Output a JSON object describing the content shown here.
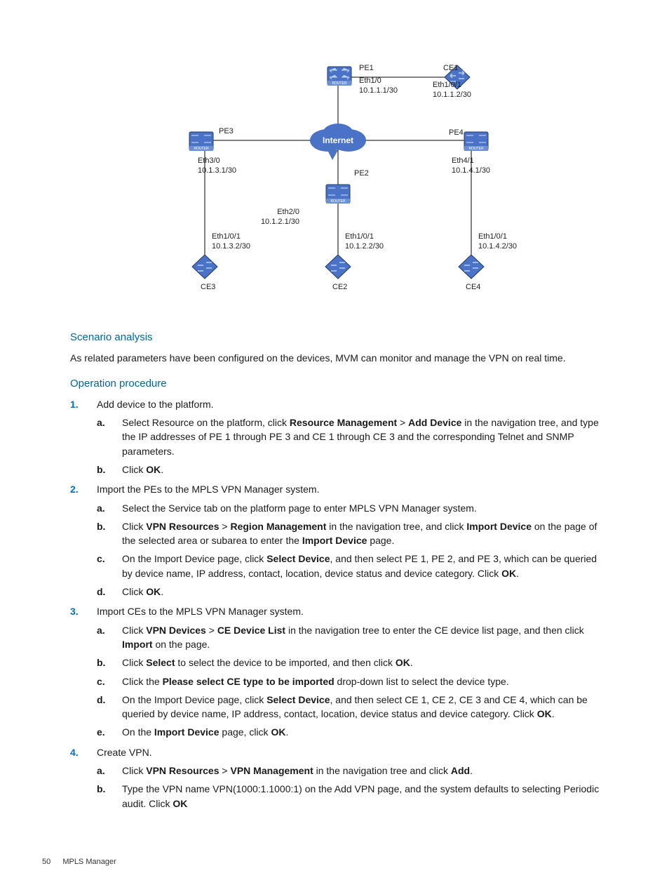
{
  "diagram": {
    "colors": {
      "node_fill": "#4a72c7",
      "node_stroke": "#233a6b",
      "link": "#000000",
      "label": "#222222",
      "cloud_text": "#ffffff"
    },
    "internet_label": "Internet",
    "label_fontsize": 11,
    "nodes": {
      "PE1": {
        "label": "PE1",
        "if": "Eth1/0",
        "ip": "10.1.1.1/30"
      },
      "CE1": {
        "label": "CE1",
        "if": "Eth1/0/1",
        "ip": "10.1.1.2/30"
      },
      "PE3": {
        "label": "PE3",
        "if": "Eth3/0",
        "ip": "10.1.3.1/30"
      },
      "PE4": {
        "label": "PE4",
        "if": "Eth4/1",
        "ip": "10.1.4.1/30"
      },
      "PE2": {
        "label": "PE2",
        "if": "Eth2/0",
        "ip": "10.1.2.1/30"
      },
      "CE2": {
        "label": "CE2",
        "if": "Eth1/0/1",
        "ip": "10.1.2.2/30"
      },
      "CE3": {
        "label": "CE3",
        "if": "Eth1/0/1",
        "ip": "10.1.3.2/30"
      },
      "CE4": {
        "label": "CE4",
        "if": "Eth1/0/1",
        "ip": "10.1.4.2/30"
      }
    }
  },
  "scenario": {
    "heading": "Scenario analysis",
    "text": "As related parameters have been configured on the devices, MVM can monitor and manage the VPN on real time."
  },
  "procedure": {
    "heading": "Operation procedure",
    "steps": [
      {
        "n": "1.",
        "text": "Add device to the platform.",
        "sub": [
          {
            "l": "a.",
            "parts": [
              "Select Resource on the platform, click ",
              {
                "b": "Resource Management"
              },
              " > ",
              {
                "b": "Add Device"
              },
              " in the navigation tree, and type the IP addresses of PE 1 through PE 3 and CE 1 through CE 3 and the corresponding Telnet and SNMP parameters."
            ]
          },
          {
            "l": "b.",
            "parts": [
              "Click ",
              {
                "b": "OK"
              },
              "."
            ]
          }
        ]
      },
      {
        "n": "2.",
        "text": "Import the PEs to the MPLS VPN Manager system.",
        "sub": [
          {
            "l": "a.",
            "parts": [
              "Select the Service tab on the platform page to enter MPLS VPN Manager system."
            ]
          },
          {
            "l": "b.",
            "parts": [
              "Click ",
              {
                "b": "VPN Resources"
              },
              " > ",
              {
                "b": "Region Management"
              },
              " in the navigation tree, and click ",
              {
                "b": "Import Device"
              },
              " on the page of the selected area or subarea to enter the ",
              {
                "b": "Import Device"
              },
              " page."
            ]
          },
          {
            "l": "c.",
            "parts": [
              "On the Import Device page, click ",
              {
                "b": "Select Device"
              },
              ", and then select PE 1, PE 2, and PE 3, which can be queried by device name, IP address, contact, location, device status and device category. Click ",
              {
                "b": "OK"
              },
              "."
            ]
          },
          {
            "l": "d.",
            "parts": [
              "Click ",
              {
                "b": "OK"
              },
              "."
            ]
          }
        ]
      },
      {
        "n": "3.",
        "text": "Import CEs to the MPLS VPN Manager system.",
        "sub": [
          {
            "l": "a.",
            "parts": [
              "Click ",
              {
                "b": "VPN Devices"
              },
              " > ",
              {
                "b": "CE Device List"
              },
              " in the navigation tree to enter the CE device list page, and then click ",
              {
                "b": "Import"
              },
              " on the page."
            ]
          },
          {
            "l": "b.",
            "parts": [
              "Click ",
              {
                "b": "Select"
              },
              " to select the device to be imported, and then click ",
              {
                "b": "OK"
              },
              "."
            ]
          },
          {
            "l": "c.",
            "parts": [
              "Click the ",
              {
                "b": "Please select CE type to be imported"
              },
              " drop-down list to select the device type."
            ]
          },
          {
            "l": "d.",
            "parts": [
              "On the Import Device page, click ",
              {
                "b": "Select Device"
              },
              ", and then select CE 1, CE 2, CE 3 and CE 4, which can be queried by device name, IP address, contact, location, device status and device category. Click ",
              {
                "b": "OK"
              },
              "."
            ]
          },
          {
            "l": "e.",
            "parts": [
              "On the ",
              {
                "b": "Import Device"
              },
              " page, click ",
              {
                "b": "OK"
              },
              "."
            ]
          }
        ]
      },
      {
        "n": "4.",
        "text": "Create VPN.",
        "sub": [
          {
            "l": "a.",
            "parts": [
              "Click ",
              {
                "b": "VPN Resources"
              },
              " > ",
              {
                "b": "VPN Management"
              },
              " in the navigation tree and click ",
              {
                "b": "Add"
              },
              "."
            ]
          },
          {
            "l": "b.",
            "parts": [
              "Type the VPN name VPN(1000:1.1000:1) on the Add VPN page, and the system defaults to selecting Periodic audit. Click ",
              {
                "b": "OK"
              }
            ]
          }
        ]
      }
    ]
  },
  "footer": {
    "page": "50",
    "title": "MPLS Manager"
  }
}
